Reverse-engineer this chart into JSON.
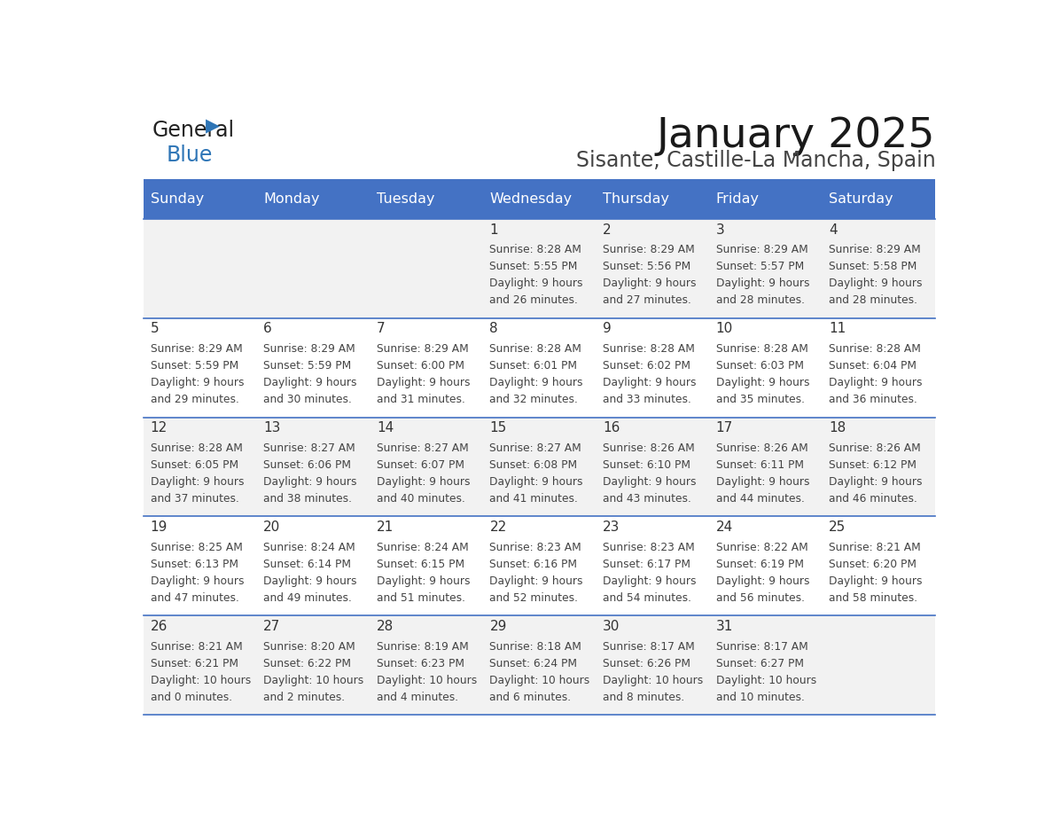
{
  "title": "January 2025",
  "subtitle": "Sisante, Castille-La Mancha, Spain",
  "days_of_week": [
    "Sunday",
    "Monday",
    "Tuesday",
    "Wednesday",
    "Thursday",
    "Friday",
    "Saturday"
  ],
  "header_bg": "#4472C4",
  "header_text_color": "#FFFFFF",
  "row_bg_even": "#FFFFFF",
  "row_bg_odd": "#F2F2F2",
  "cell_text_color": "#333333",
  "separator_color": "#4472C4",
  "logo_general_color": "#222222",
  "logo_blue_color": "#2E75B6",
  "calendar": [
    [
      {
        "day": "",
        "sunrise": "",
        "sunset": "",
        "daylight_hours": "",
        "daylight_minutes": ""
      },
      {
        "day": "",
        "sunrise": "",
        "sunset": "",
        "daylight_hours": "",
        "daylight_minutes": ""
      },
      {
        "day": "",
        "sunrise": "",
        "sunset": "",
        "daylight_hours": "",
        "daylight_minutes": ""
      },
      {
        "day": "1",
        "sunrise": "8:28 AM",
        "sunset": "5:55 PM",
        "daylight_hours": "9",
        "daylight_minutes": "26"
      },
      {
        "day": "2",
        "sunrise": "8:29 AM",
        "sunset": "5:56 PM",
        "daylight_hours": "9",
        "daylight_minutes": "27"
      },
      {
        "day": "3",
        "sunrise": "8:29 AM",
        "sunset": "5:57 PM",
        "daylight_hours": "9",
        "daylight_minutes": "28"
      },
      {
        "day": "4",
        "sunrise": "8:29 AM",
        "sunset": "5:58 PM",
        "daylight_hours": "9",
        "daylight_minutes": "28"
      }
    ],
    [
      {
        "day": "5",
        "sunrise": "8:29 AM",
        "sunset": "5:59 PM",
        "daylight_hours": "9",
        "daylight_minutes": "29"
      },
      {
        "day": "6",
        "sunrise": "8:29 AM",
        "sunset": "5:59 PM",
        "daylight_hours": "9",
        "daylight_minutes": "30"
      },
      {
        "day": "7",
        "sunrise": "8:29 AM",
        "sunset": "6:00 PM",
        "daylight_hours": "9",
        "daylight_minutes": "31"
      },
      {
        "day": "8",
        "sunrise": "8:28 AM",
        "sunset": "6:01 PM",
        "daylight_hours": "9",
        "daylight_minutes": "32"
      },
      {
        "day": "9",
        "sunrise": "8:28 AM",
        "sunset": "6:02 PM",
        "daylight_hours": "9",
        "daylight_minutes": "33"
      },
      {
        "day": "10",
        "sunrise": "8:28 AM",
        "sunset": "6:03 PM",
        "daylight_hours": "9",
        "daylight_minutes": "35"
      },
      {
        "day": "11",
        "sunrise": "8:28 AM",
        "sunset": "6:04 PM",
        "daylight_hours": "9",
        "daylight_minutes": "36"
      }
    ],
    [
      {
        "day": "12",
        "sunrise": "8:28 AM",
        "sunset": "6:05 PM",
        "daylight_hours": "9",
        "daylight_minutes": "37"
      },
      {
        "day": "13",
        "sunrise": "8:27 AM",
        "sunset": "6:06 PM",
        "daylight_hours": "9",
        "daylight_minutes": "38"
      },
      {
        "day": "14",
        "sunrise": "8:27 AM",
        "sunset": "6:07 PM",
        "daylight_hours": "9",
        "daylight_minutes": "40"
      },
      {
        "day": "15",
        "sunrise": "8:27 AM",
        "sunset": "6:08 PM",
        "daylight_hours": "9",
        "daylight_minutes": "41"
      },
      {
        "day": "16",
        "sunrise": "8:26 AM",
        "sunset": "6:10 PM",
        "daylight_hours": "9",
        "daylight_minutes": "43"
      },
      {
        "day": "17",
        "sunrise": "8:26 AM",
        "sunset": "6:11 PM",
        "daylight_hours": "9",
        "daylight_minutes": "44"
      },
      {
        "day": "18",
        "sunrise": "8:26 AM",
        "sunset": "6:12 PM",
        "daylight_hours": "9",
        "daylight_minutes": "46"
      }
    ],
    [
      {
        "day": "19",
        "sunrise": "8:25 AM",
        "sunset": "6:13 PM",
        "daylight_hours": "9",
        "daylight_minutes": "47"
      },
      {
        "day": "20",
        "sunrise": "8:24 AM",
        "sunset": "6:14 PM",
        "daylight_hours": "9",
        "daylight_minutes": "49"
      },
      {
        "day": "21",
        "sunrise": "8:24 AM",
        "sunset": "6:15 PM",
        "daylight_hours": "9",
        "daylight_minutes": "51"
      },
      {
        "day": "22",
        "sunrise": "8:23 AM",
        "sunset": "6:16 PM",
        "daylight_hours": "9",
        "daylight_minutes": "52"
      },
      {
        "day": "23",
        "sunrise": "8:23 AM",
        "sunset": "6:17 PM",
        "daylight_hours": "9",
        "daylight_minutes": "54"
      },
      {
        "day": "24",
        "sunrise": "8:22 AM",
        "sunset": "6:19 PM",
        "daylight_hours": "9",
        "daylight_minutes": "56"
      },
      {
        "day": "25",
        "sunrise": "8:21 AM",
        "sunset": "6:20 PM",
        "daylight_hours": "9",
        "daylight_minutes": "58"
      }
    ],
    [
      {
        "day": "26",
        "sunrise": "8:21 AM",
        "sunset": "6:21 PM",
        "daylight_hours": "10",
        "daylight_minutes": "0"
      },
      {
        "day": "27",
        "sunrise": "8:20 AM",
        "sunset": "6:22 PM",
        "daylight_hours": "10",
        "daylight_minutes": "2"
      },
      {
        "day": "28",
        "sunrise": "8:19 AM",
        "sunset": "6:23 PM",
        "daylight_hours": "10",
        "daylight_minutes": "4"
      },
      {
        "day": "29",
        "sunrise": "8:18 AM",
        "sunset": "6:24 PM",
        "daylight_hours": "10",
        "daylight_minutes": "6"
      },
      {
        "day": "30",
        "sunrise": "8:17 AM",
        "sunset": "6:26 PM",
        "daylight_hours": "10",
        "daylight_minutes": "8"
      },
      {
        "day": "31",
        "sunrise": "8:17 AM",
        "sunset": "6:27 PM",
        "daylight_hours": "10",
        "daylight_minutes": "10"
      },
      {
        "day": "",
        "sunrise": "",
        "sunset": "",
        "daylight_hours": "",
        "daylight_minutes": ""
      }
    ]
  ]
}
